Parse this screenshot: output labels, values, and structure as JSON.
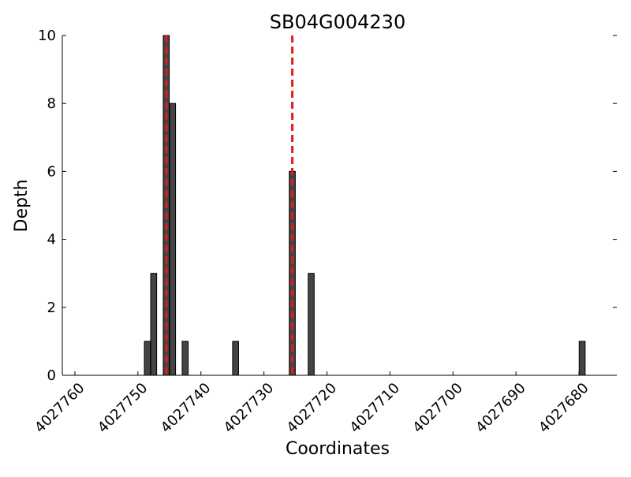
{
  "chart_data": {
    "type": "bar",
    "title": "SB04G004230",
    "xlabel": "Coordinates",
    "ylabel": "Depth",
    "x_inverted": true,
    "xlim": [
      4027762,
      4027674
    ],
    "ylim": [
      0,
      10
    ],
    "xticks": [
      4027760,
      4027750,
      4027740,
      4027730,
      4027720,
      4027710,
      4027700,
      4027690,
      4027680
    ],
    "yticks": [
      0,
      2,
      4,
      6,
      8,
      10
    ],
    "grid": false,
    "bars": [
      {
        "x": 4027748.5,
        "value": 1
      },
      {
        "x": 4027747.5,
        "value": 3
      },
      {
        "x": 4027745.5,
        "value": 10
      },
      {
        "x": 4027744.5,
        "value": 8
      },
      {
        "x": 4027742.5,
        "value": 1
      },
      {
        "x": 4027734.5,
        "value": 1
      },
      {
        "x": 4027725.5,
        "value": 6
      },
      {
        "x": 4027722.5,
        "value": 3
      },
      {
        "x": 4027679.5,
        "value": 1
      }
    ],
    "bar_color": "#444444",
    "reference_lines": [
      {
        "x": 4027745.5,
        "color": "#e41a1c",
        "style": "dashed"
      },
      {
        "x": 4027725.5,
        "color": "#e41a1c",
        "style": "dashed"
      }
    ]
  }
}
